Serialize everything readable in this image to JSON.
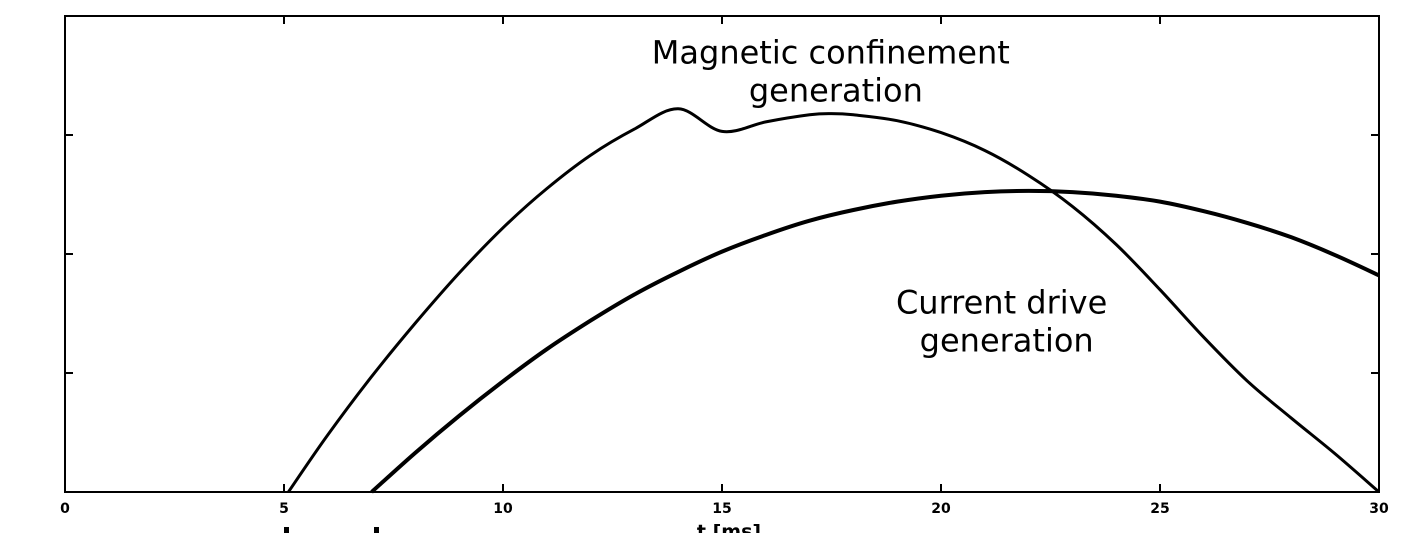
{
  "chart_data": {
    "type": "line",
    "title": "",
    "xlabel": "t [ms]",
    "ylabel": "",
    "xlim": [
      0,
      30
    ],
    "ylim": [
      0,
      4
    ],
    "xticks": [
      0,
      5,
      10,
      15,
      20,
      25,
      30
    ],
    "xtick_labels": [
      "0",
      "5",
      "10",
      "15",
      "20",
      "25",
      "30"
    ],
    "yticks": [
      1,
      2,
      3
    ],
    "grid": false,
    "legend": "none",
    "series": [
      {
        "x": [
          5.1,
          6,
          7,
          8,
          9,
          10,
          11,
          12,
          13,
          14,
          15,
          16,
          17,
          17.5,
          18,
          19,
          20,
          21,
          22,
          23,
          24,
          25,
          26,
          27,
          28,
          29,
          30
        ],
        "y": [
          0.0,
          0.48,
          0.97,
          1.42,
          1.84,
          2.22,
          2.55,
          2.83,
          3.05,
          3.22,
          3.03,
          3.11,
          3.17,
          3.18,
          3.17,
          3.12,
          3.02,
          2.87,
          2.66,
          2.4,
          2.08,
          1.7,
          1.3,
          0.93,
          0.62,
          0.32,
          0.0
        ]
      },
      {
        "x": [
          7,
          8,
          9,
          10,
          11,
          12,
          13,
          14,
          15,
          16,
          17,
          18,
          19,
          20,
          21,
          22,
          23,
          24,
          25,
          26,
          27,
          28,
          29,
          30
        ],
        "y": [
          0.0,
          0.33,
          0.64,
          0.93,
          1.2,
          1.44,
          1.66,
          1.85,
          2.02,
          2.16,
          2.28,
          2.37,
          2.44,
          2.49,
          2.52,
          2.53,
          2.52,
          2.49,
          2.44,
          2.36,
          2.26,
          2.14,
          1.99,
          1.82
        ]
      }
    ],
    "annotations": [
      {
        "text": [
          "Magnetic confinement",
          "generation"
        ],
        "x": 17.6,
        "y": 3.6
      },
      {
        "text": [
          "Current drive",
          "generation"
        ],
        "x": 21.5,
        "y": 1.5
      }
    ]
  }
}
